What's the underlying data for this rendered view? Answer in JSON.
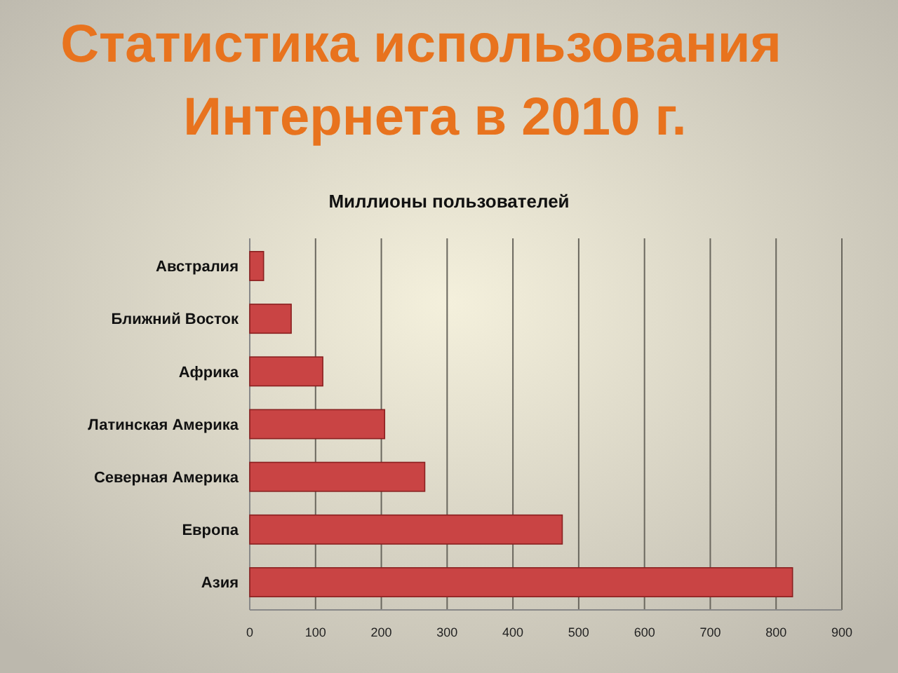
{
  "chart_data": {
    "type": "bar",
    "orientation": "horizontal",
    "title": "Статистика использования Интернета в 2010 г.",
    "subtitle": "Миллионы пользователей",
    "categories": [
      "Австралия",
      "Ближний Восток",
      "Африка",
      "Латинская Америка",
      "Северная Америка",
      "Европа",
      "Азия"
    ],
    "values": [
      21,
      63,
      111,
      205,
      266,
      475,
      825
    ],
    "color": "#c94444",
    "xlim": [
      0,
      900
    ],
    "xticks": [
      0,
      100,
      200,
      300,
      400,
      500,
      600,
      700,
      800,
      900
    ],
    "grid": "x"
  }
}
